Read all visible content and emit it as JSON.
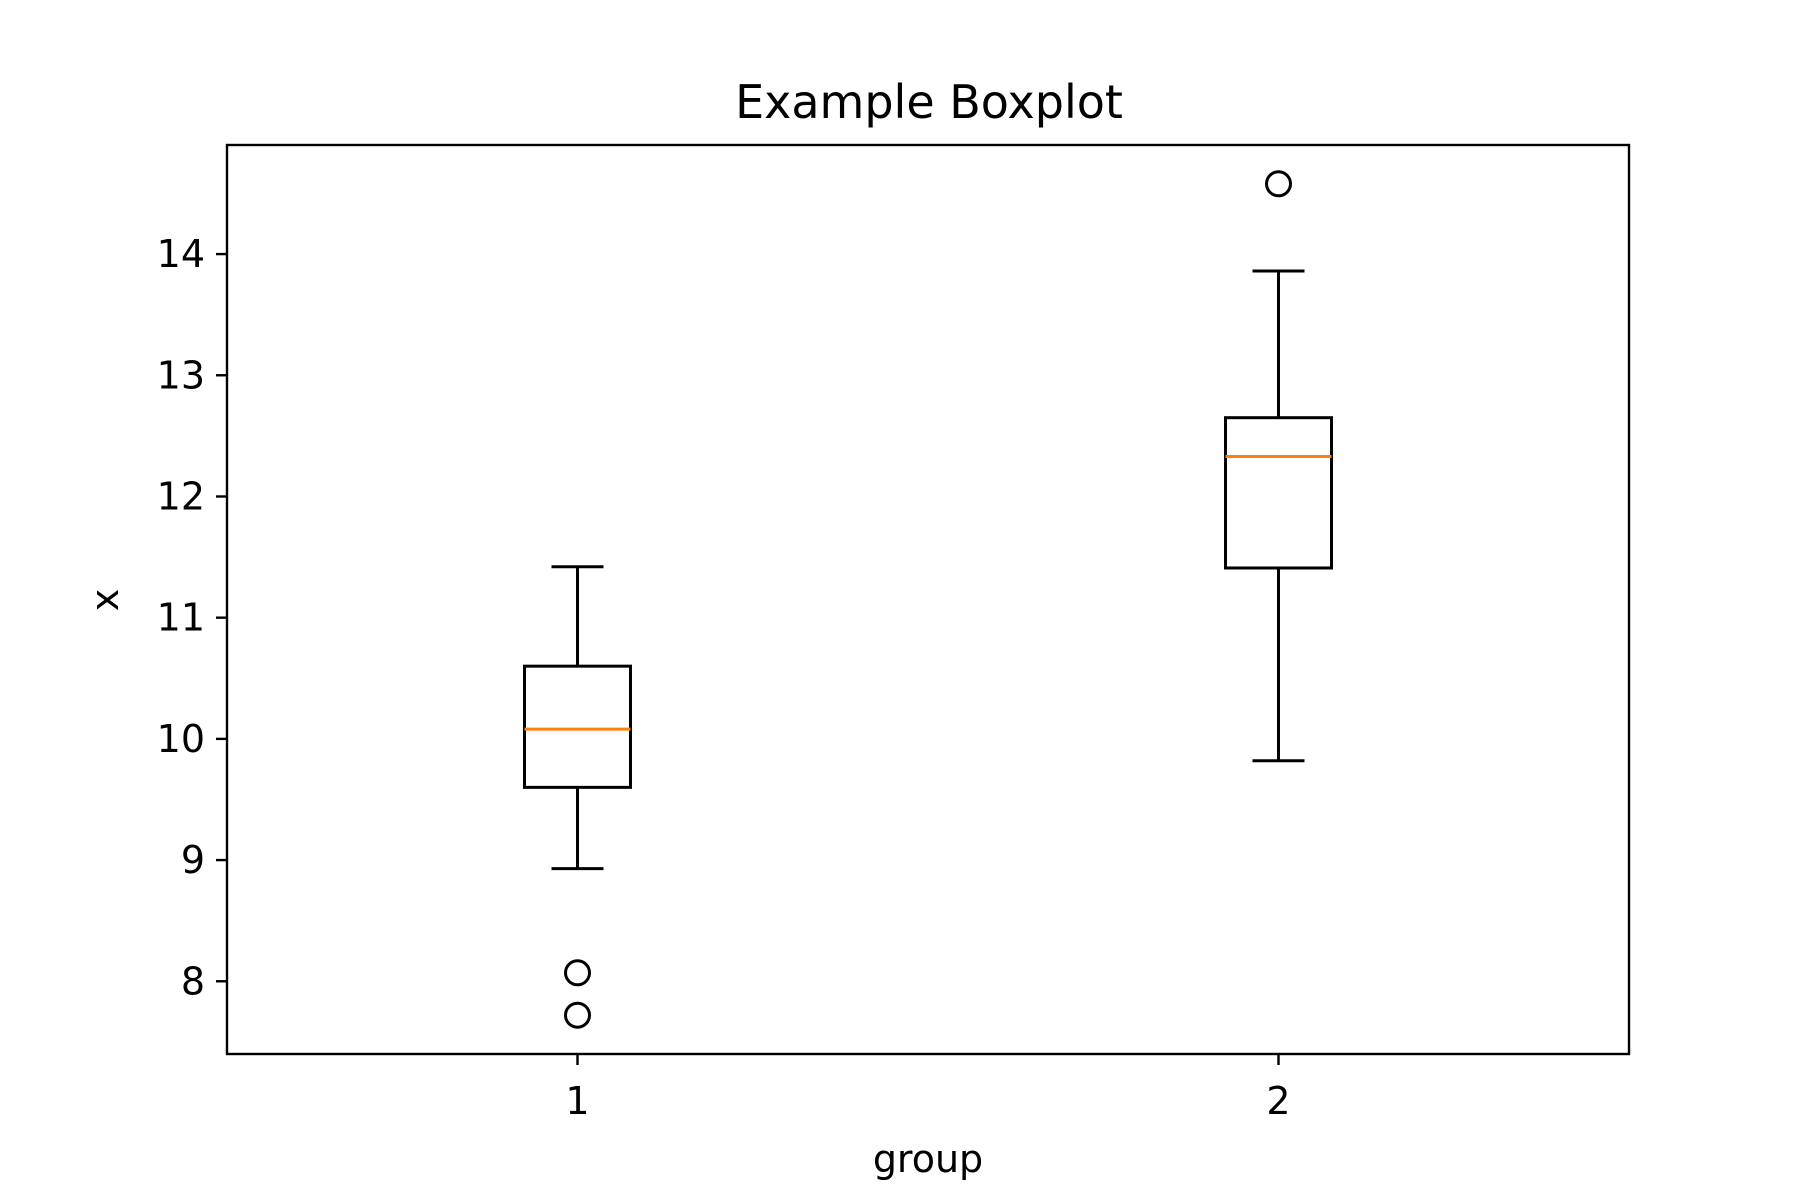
{
  "chart_data": {
    "type": "boxplot",
    "title": "Example Boxplot",
    "xlabel": "group",
    "ylabel": "x",
    "ylim": [
      7.4,
      14.9
    ],
    "yticks": [
      8,
      9,
      10,
      11,
      12,
      13,
      14
    ],
    "grid": false,
    "categories": [
      "1",
      "2"
    ],
    "boxes": [
      {
        "label": "1",
        "whisker_low": 8.93,
        "q1": 9.6,
        "median": 10.08,
        "q3": 10.6,
        "whisker_high": 11.42,
        "fliers": [
          8.07,
          7.72
        ]
      },
      {
        "label": "2",
        "whisker_low": 9.82,
        "q1": 11.41,
        "median": 12.33,
        "q3": 12.65,
        "whisker_high": 13.86,
        "fliers": [
          14.58
        ]
      }
    ],
    "colors": {
      "box": "#000000",
      "median": "#ff7f0e",
      "flier": "#000000"
    }
  }
}
